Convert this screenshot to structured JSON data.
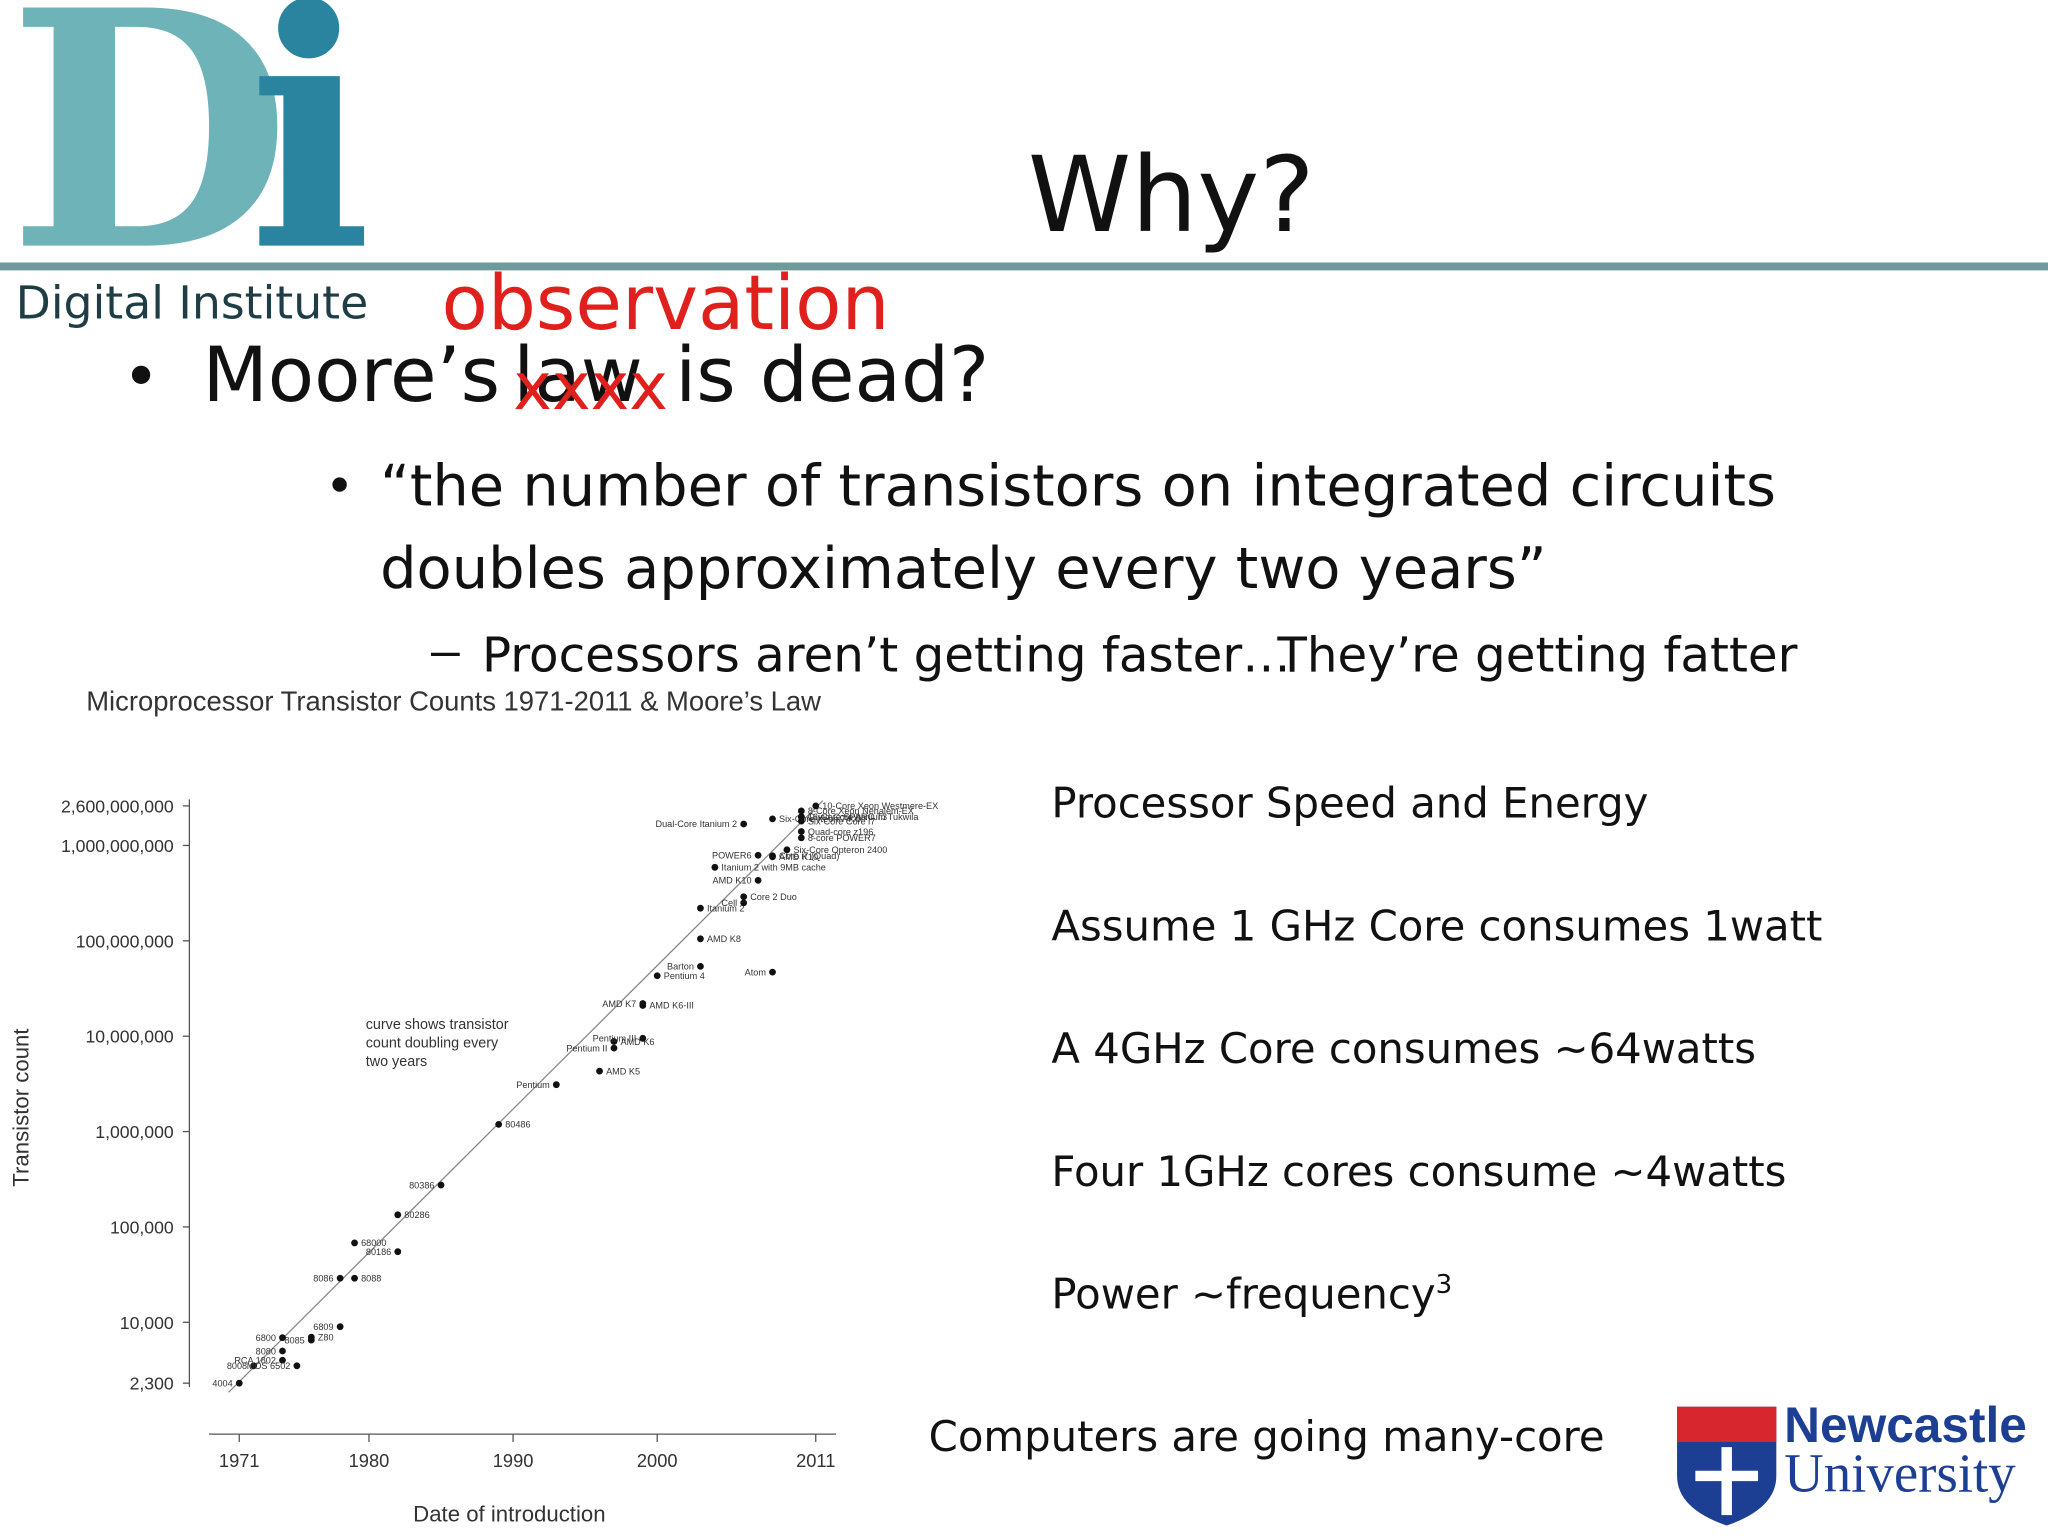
{
  "header": {
    "logo_letters": [
      "D",
      "i"
    ],
    "logo_caption": "Digital Institute",
    "title": "Why?"
  },
  "bullets": [
    {
      "before": "Moore’s",
      "struck": "law",
      "strike_mark": "xxxx",
      "replacement": "observation",
      "after": "is dead?"
    },
    {
      "lines": [
        "“the number of transistors on integrated circuits",
        "doubles approximately every two years”"
      ]
    }
  ],
  "sub_bullet": {
    "left": "Processors aren’t getting faster…",
    "right": "They’re getting fatter"
  },
  "notes": {
    "heading": "Processor Speed and Energy",
    "lines": [
      "Assume 1 GHz Core consumes 1watt",
      "A 4GHz Core consumes ~64watts",
      "Four 1GHz cores consume ~4watts"
    ],
    "power": "Power ~frequency",
    "power_exponent": "3",
    "conclusion": "Computers are going many-core"
  },
  "footer_logo": {
    "line1": "Newcastle",
    "line2": "University"
  },
  "chart_data": {
    "type": "scatter",
    "title": "Microprocessor Transistor Counts 1971-2011 & Moore’s Law",
    "x_label": "Date of introduction",
    "y_label": "Transistor count",
    "annotation": [
      "curve shows transistor",
      "count doubling every",
      "two years"
    ],
    "log_y": true,
    "color": "#111111",
    "xlim": [
      1968.9,
      2012.4
    ],
    "xticks": [
      1971,
      1980,
      1990,
      2000,
      2011
    ],
    "ylim": [
      2300,
      2600000000
    ],
    "yticks": [
      {
        "value": 2300,
        "label": "2,300"
      },
      {
        "value": 10000,
        "label": "10,000"
      },
      {
        "value": 100000,
        "label": "100,000"
      },
      {
        "value": 1000000,
        "label": "1,000,000"
      },
      {
        "value": 10000000,
        "label": "10,000,000"
      },
      {
        "value": 100000000,
        "label": "100,000,000"
      },
      {
        "value": 1000000000,
        "label": "1,000,000,000"
      },
      {
        "value": 2600000000,
        "label": "2,600,000,000"
      }
    ],
    "labels": [
      "4004",
      "8008",
      "8080",
      "RCA 1802",
      "8085",
      "6800",
      "MOS 6502",
      "Z80",
      "8086",
      "8088",
      "6809",
      "68000",
      "80186",
      "80286",
      "80386",
      "80486",
      "Pentium",
      "AMD K5",
      "Pentium II",
      "AMD K6",
      "Pentium III",
      "AMD K6-III",
      "AMD K7",
      "Pentium 4",
      "Barton",
      "AMD K8",
      "Atom",
      "Itanium 2",
      "Cell",
      "Core 2 Duo",
      "AMD K10",
      "Itanium 2 with 9MB cache",
      "POWER6",
      "AMD K10",
      "Dual-Core Itanium 2",
      "Core i7 (Quad)",
      "Six-Core Opteron 2400",
      "Six-Core Xeon 7400",
      "Six-Core Core i7",
      "8-core POWER7",
      "Quad-core z196",
      "Quad-Core Itanium Tukwila",
      "8-Core Xeon Nehalem-EX",
      "16-Core SPARC T3",
      "10-Core Xeon Westmere-EX"
    ],
    "x": [
      1971,
      1972,
      1974,
      1974,
      1976,
      1974,
      1975,
      1976,
      1978,
      1979,
      1978,
      1979,
      1982,
      1982,
      1985,
      1989,
      1993,
      1996,
      1997,
      1997,
      1999,
      1999,
      1999,
      2000,
      2003,
      2003,
      2008,
      2003,
      2006,
      2006,
      2007,
      2004,
      2007,
      2008,
      2006,
      2008,
      2009,
      2008,
      2010,
      2010,
      2010,
      2010,
      2010,
      2010,
      2011
    ],
    "values": [
      2300,
      3500,
      5000,
      4000,
      6500,
      6900,
      3500,
      7000,
      29000,
      29000,
      9000,
      68000,
      55000,
      134000,
      275000,
      1190000,
      3100000,
      4300000,
      7500000,
      8800000,
      9500000,
      21000000,
      22000000,
      43000000,
      54000000,
      105000000,
      47000000,
      220000000,
      250000000,
      290000000,
      430000000,
      590000000,
      790000000,
      760000000,
      1680000000,
      780000000,
      900000000,
      1900000000,
      1800000000,
      1200000000,
      1400000000,
      2000000000,
      2300000000,
      2000000000,
      2600000000
    ]
  }
}
